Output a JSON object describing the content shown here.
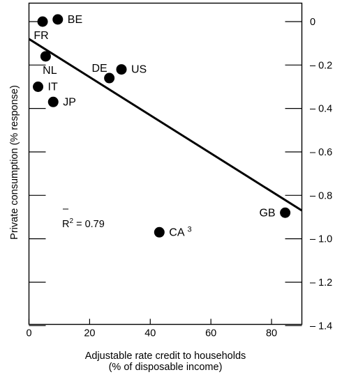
{
  "chart_data": {
    "type": "scatter",
    "xlabel": [
      "Adjustable rate credit to households",
      "(% of disposable income)"
    ],
    "ylabel": "Private consumption (% response)",
    "xlim": [
      0,
      90
    ],
    "ylim": [
      -1.4,
      0.1
    ],
    "x_ticks": [
      0,
      20,
      40,
      60,
      80
    ],
    "x_tick_labels": [
      "0",
      "20",
      "40",
      "60",
      "80"
    ],
    "y_ticks": [
      0,
      -0.2,
      -0.4,
      -0.6,
      -0.8,
      -1.0,
      -1.2,
      -1.4
    ],
    "y_tick_labels": [
      "0",
      "– 0.2",
      "– 0.4",
      "– 0.6",
      "– 0.8",
      "– 1.0",
      "– 1.2",
      "– 1.4"
    ],
    "y_axis_side": "right",
    "grid": false,
    "points": [
      {
        "label": "BE",
        "x": 9.5,
        "y": 0.01,
        "label_pos": "right"
      },
      {
        "label": "FR",
        "x": 4.5,
        "y": 0.0,
        "label_pos": "below-left"
      },
      {
        "label": "NL",
        "x": 5.5,
        "y": -0.16,
        "label_pos": "below"
      },
      {
        "label": "DE",
        "x": 26.5,
        "y": -0.26,
        "label_pos": "above-left"
      },
      {
        "label": "US",
        "x": 30.5,
        "y": -0.22,
        "label_pos": "right"
      },
      {
        "label": "IT",
        "x": 3.0,
        "y": -0.3,
        "label_pos": "right"
      },
      {
        "label": "JP",
        "x": 8.0,
        "y": -0.37,
        "label_pos": "right"
      },
      {
        "label": "CA",
        "label_sup": "3",
        "x": 43.0,
        "y": -0.97,
        "label_pos": "right"
      },
      {
        "label": "GB",
        "x": 84.5,
        "y": -0.88,
        "label_pos": "left"
      }
    ],
    "fit_line": {
      "x": [
        0,
        90
      ],
      "y": [
        -0.08,
        -0.87
      ]
    },
    "annotation": {
      "bar": "–",
      "text": "R",
      "sup": "2",
      "rest": " = 0.79"
    }
  }
}
